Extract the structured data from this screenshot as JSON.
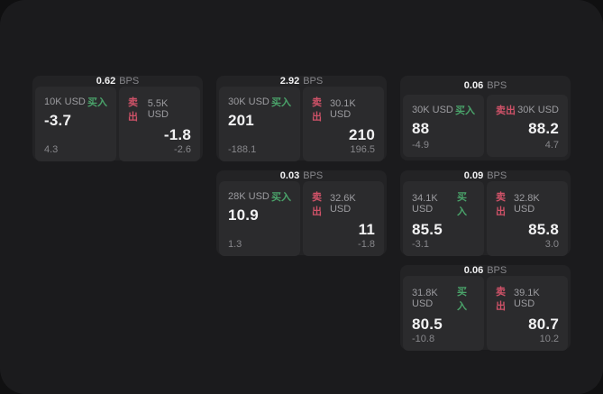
{
  "labels": {
    "bps_unit": "BPS",
    "buy": "买入",
    "sell": "卖出"
  },
  "colors": {
    "buy": "#4aa36a",
    "sell": "#cf5268",
    "page": "#1b1b1d",
    "card": "#232325",
    "panel": "#2b2b2d"
  },
  "cards": [
    {
      "bps": "0.62",
      "buy": {
        "amount": "10K USD",
        "value": "-3.7",
        "sub": "4.3"
      },
      "sell": {
        "amount": "5.5K USD",
        "value": "-1.8",
        "sub": "-2.6"
      }
    },
    {
      "bps": "2.92",
      "buy": {
        "amount": "30K USD",
        "value": "201",
        "sub": "-188.1"
      },
      "sell": {
        "amount": "30.1K USD",
        "value": "210",
        "sub": "196.5"
      }
    },
    {
      "bps": "0.06",
      "buy": {
        "amount": "30K USD",
        "value": "88",
        "sub": "-4.9"
      },
      "sell": {
        "amount": "30K USD",
        "value": "88.2",
        "sub": "4.7"
      }
    },
    {
      "bps": "0.03",
      "buy": {
        "amount": "28K USD",
        "value": "10.9",
        "sub": "1.3"
      },
      "sell": {
        "amount": "32.6K USD",
        "value": "11",
        "sub": "-1.8"
      }
    },
    {
      "bps": "0.09",
      "buy": {
        "amount": "34.1K USD",
        "value": "85.5",
        "sub": "-3.1"
      },
      "sell": {
        "amount": "32.8K USD",
        "value": "85.8",
        "sub": "3.0"
      }
    },
    {
      "bps": "0.06",
      "buy": {
        "amount": "31.8K USD",
        "value": "80.5",
        "sub": "-10.8"
      },
      "sell": {
        "amount": "39.1K USD",
        "value": "80.7",
        "sub": "10.2"
      }
    }
  ]
}
